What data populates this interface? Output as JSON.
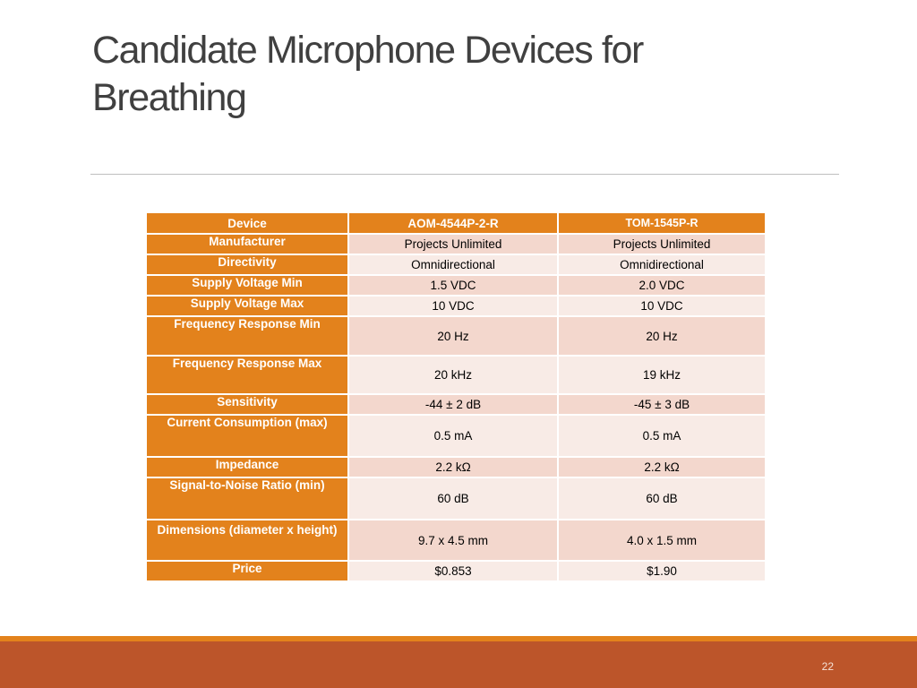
{
  "slide": {
    "title": "Candidate Microphone Devices for Breathing",
    "page_number": "22"
  },
  "table": {
    "columns": [
      "Device",
      "AOM-4544P-2-R",
      "TOM-1545P-R"
    ],
    "rows": [
      [
        "Manufacturer",
        "Projects Unlimited",
        "Projects Unlimited"
      ],
      [
        "Directivity",
        "Omnidirectional",
        "Omnidirectional"
      ],
      [
        "Supply Voltage Min",
        "1.5 VDC",
        "2.0 VDC"
      ],
      [
        "Supply Voltage Max",
        "10 VDC",
        "10 VDC"
      ],
      [
        "Frequency Response Min",
        "20 Hz",
        "20 Hz"
      ],
      [
        "Frequency Response Max",
        "20 kHz",
        "19 kHz"
      ],
      [
        "Sensitivity",
        "-44 ± 2 dB",
        "-45 ± 3 dB"
      ],
      [
        "Current Consumption (max)",
        "0.5 mA",
        "0.5 mA"
      ],
      [
        "Impedance",
        "2.2 kΩ",
        "2.2 kΩ"
      ],
      [
        "Signal-to-Noise Ratio (min)",
        "60 dB",
        "60 dB"
      ],
      [
        "Dimensions (diameter x height)",
        "9.7 x 4.5 mm",
        "4.0 x 1.5 mm"
      ],
      [
        "Price",
        "$0.853",
        "$1.90"
      ]
    ]
  },
  "colors": {
    "header": "#e3821c",
    "row_light": "#f8ebe6",
    "row_dark": "#f3d7cd",
    "bottom_band": "#bc552a",
    "accent_line": "#e3821c",
    "title_text": "#404040"
  }
}
